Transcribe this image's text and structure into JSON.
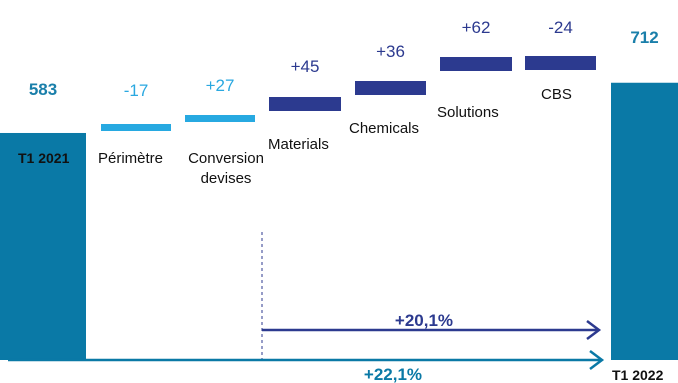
{
  "chart_data": {
    "type": "waterfall",
    "title": "",
    "xlabel": "",
    "ylabel": "",
    "ylim": [
      0,
      800
    ],
    "categories": [
      {
        "label": "T1 2021",
        "lines": [
          "T1 2021"
        ],
        "kind": "total",
        "value": 583,
        "value_label": "583"
      },
      {
        "label": "Périmètre",
        "lines": [
          "Périmètre"
        ],
        "kind": "step",
        "group": "light",
        "value": -17,
        "value_label": "-17"
      },
      {
        "label": "Conversion devises",
        "lines": [
          "Conversion",
          "devises"
        ],
        "kind": "step",
        "group": "light",
        "value": 27,
        "value_label": "+27"
      },
      {
        "label": "Materials",
        "lines": [
          "Materials"
        ],
        "kind": "step",
        "group": "dark",
        "value": 45,
        "value_label": "+45"
      },
      {
        "label": "Chemicals",
        "lines": [
          "Chemicals"
        ],
        "kind": "step",
        "group": "dark",
        "value": 36,
        "value_label": "+36"
      },
      {
        "label": "Solutions",
        "lines": [
          "Solutions"
        ],
        "kind": "step",
        "group": "dark",
        "value": 62,
        "value_label": "+62"
      },
      {
        "label": "CBS",
        "lines": [
          "CBS"
        ],
        "kind": "step",
        "group": "dark",
        "value": -24,
        "value_label": "-24"
      },
      {
        "label": "T1 2022",
        "lines": [
          "T1 2022"
        ],
        "kind": "total",
        "value": 712,
        "value_label": "712"
      }
    ],
    "annotations": [
      {
        "id": "organic",
        "text": "+20,1%"
      },
      {
        "id": "total",
        "text": "+22,1%"
      }
    ],
    "colors": {
      "total": "#0a79a6",
      "light": "#27a9e1",
      "dark": "#2c3a8f",
      "baseline": "#0a79a6",
      "total_arrow": "#0a79a6",
      "organic_arrow": "#2c3a8f",
      "divider": "#2c3a8f"
    },
    "grid": false,
    "legend": "none"
  }
}
